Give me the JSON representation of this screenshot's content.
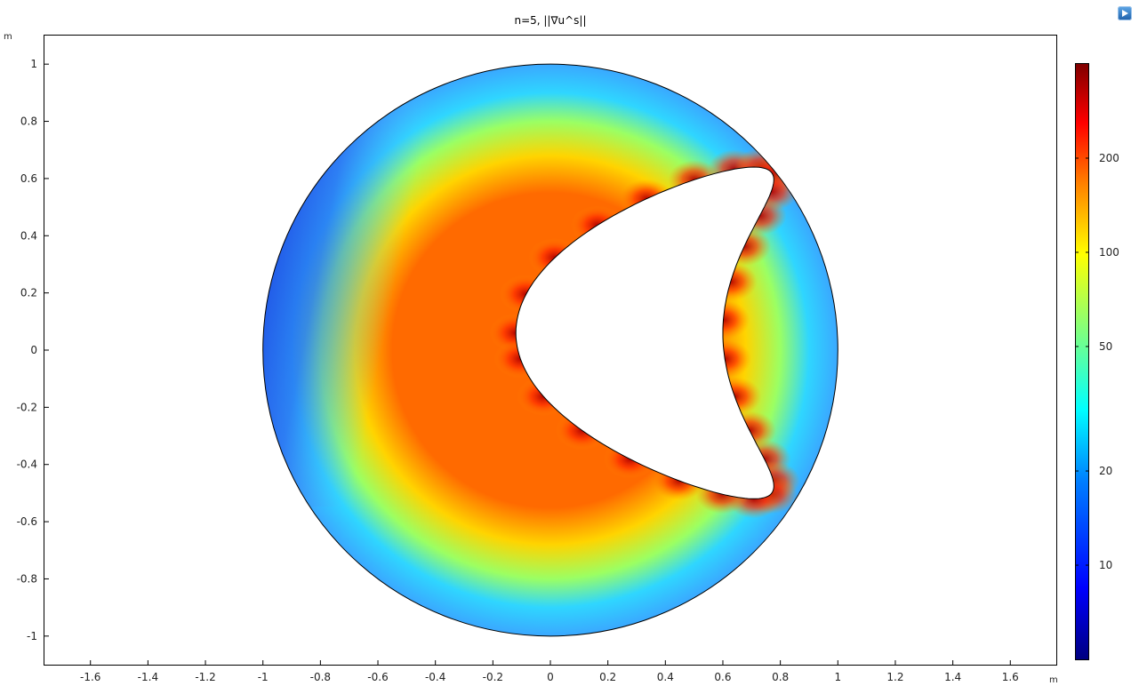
{
  "chart_data": {
    "type": "heatmap",
    "title": "n=5, ||∇u^s||",
    "xlabel_unit": "m",
    "ylabel_unit": "m",
    "xlim": [
      -1.76,
      1.76
    ],
    "ylim": [
      -1.1,
      1.1
    ],
    "x_ticks": [
      "-1.6",
      "-1.4",
      "-1.2",
      "-1",
      "-0.8",
      "-0.6",
      "-0.4",
      "-0.2",
      "0",
      "0.2",
      "0.4",
      "0.6",
      "0.8",
      "1",
      "1.2",
      "1.4",
      "1.6"
    ],
    "y_ticks": [
      "1",
      "0.8",
      "0.6",
      "0.4",
      "0.2",
      "0",
      "-0.2",
      "-0.4",
      "-0.6",
      "-0.8",
      "-1"
    ],
    "domain": {
      "outer_circle": {
        "center": [
          0,
          0
        ],
        "radius": 1.0
      },
      "inner_obstacle": "kite-shaped cavity, cusp near (-0.15, 0.04), max x approx 0.6, y range approx -0.55 to 0.57"
    },
    "colorbar": {
      "scale": "log",
      "range": [
        5,
        400
      ],
      "ticks": [
        "200",
        "100",
        "50",
        "20",
        "10"
      ],
      "colormap": [
        "#00007f",
        "#0000ff",
        "#007fff",
        "#00ffff",
        "#7fff7f",
        "#ffff00",
        "#ff7f00",
        "#ff0000",
        "#7f0000"
      ]
    },
    "grid": false
  },
  "ui": {
    "logo_icon": "play-logo-icon"
  }
}
